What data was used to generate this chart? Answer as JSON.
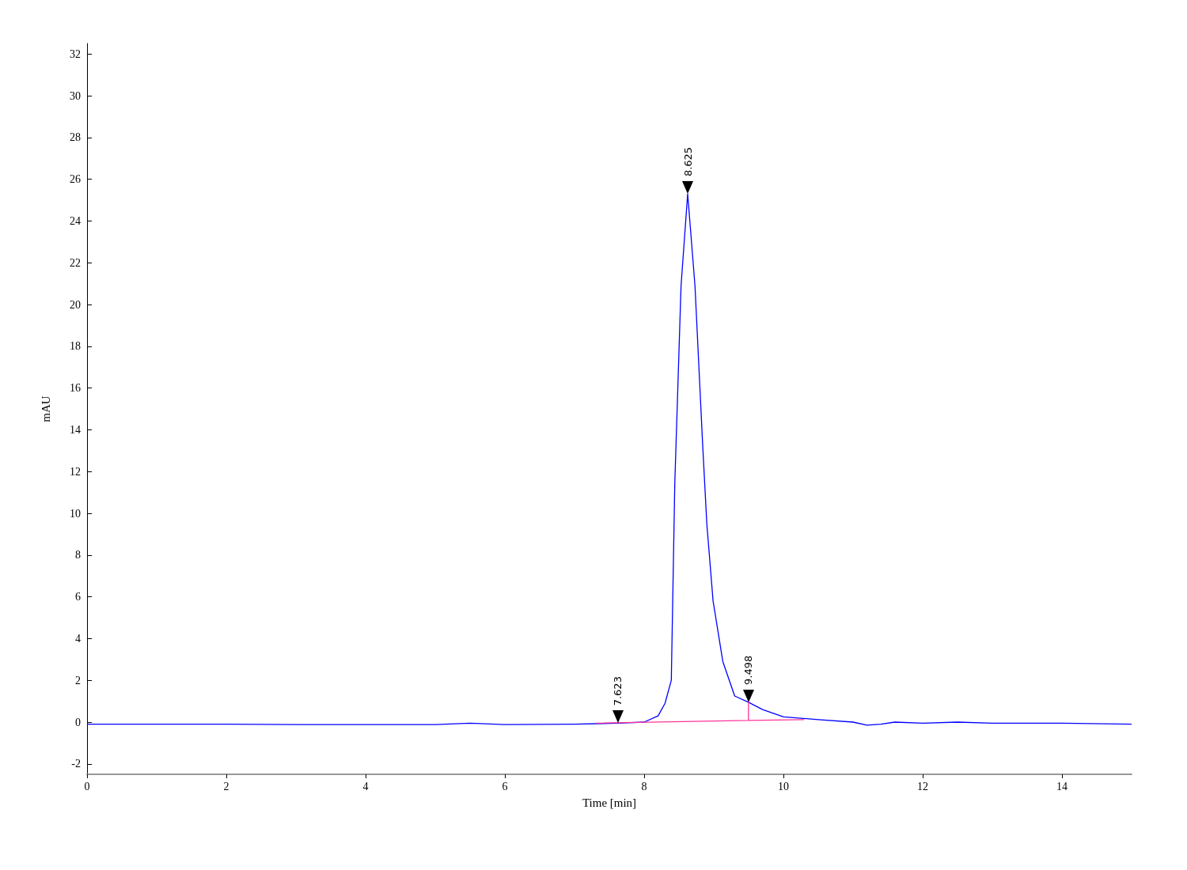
{
  "chart_data": {
    "type": "line",
    "xlabel": "Time [min]",
    "ylabel": "mAU",
    "xlim": [
      0,
      15
    ],
    "xticks": [
      0,
      2,
      4,
      6,
      8,
      10,
      12,
      14
    ],
    "ylim": [
      -2.5,
      32.5
    ],
    "yticks": [
      -2,
      0,
      2,
      4,
      6,
      8,
      10,
      12,
      14,
      16,
      18,
      20,
      22,
      24,
      26,
      28,
      30,
      32
    ],
    "grid": false,
    "marker": "none",
    "line_style": "solid",
    "series": [
      {
        "color": "#0000ff",
        "x": [
          0,
          1,
          2,
          3,
          4,
          5,
          5.5,
          6,
          7,
          7.623,
          8,
          8.2,
          8.3,
          8.39,
          8.44,
          8.53,
          8.625,
          8.73,
          8.84,
          8.9,
          8.99,
          9.13,
          9.3,
          9.498,
          9.7,
          10,
          10.5,
          11,
          11.2,
          11.4,
          11.6,
          12,
          12.5,
          13,
          14,
          15
        ],
        "values": [
          -0.1,
          -0.1,
          -0.1,
          -0.12,
          -0.12,
          -0.12,
          -0.05,
          -0.12,
          -0.1,
          -0.05,
          0.0,
          0.3,
          0.9,
          2.0,
          11.4,
          20.9,
          25.3,
          20.9,
          13.3,
          9.5,
          5.8,
          2.9,
          1.25,
          0.95,
          0.6,
          0.25,
          0.12,
          0.0,
          -0.15,
          -0.1,
          0.0,
          -0.05,
          0.0,
          -0.05,
          -0.05,
          -0.1
        ]
      },
      {
        "color": "#ff3399",
        "x": [
          7.3,
          9.498,
          9.498,
          9.498,
          10.3
        ],
        "values": [
          -0.05,
          0.08,
          0.95,
          0.08,
          0.12
        ]
      }
    ],
    "annotations": [
      {
        "text": "7.623",
        "x": 7.623,
        "y": -0.05
      },
      {
        "text": "8.625",
        "x": 8.625,
        "y": 25.3
      },
      {
        "text": "9.498",
        "x": 9.498,
        "y": 0.95
      }
    ]
  }
}
